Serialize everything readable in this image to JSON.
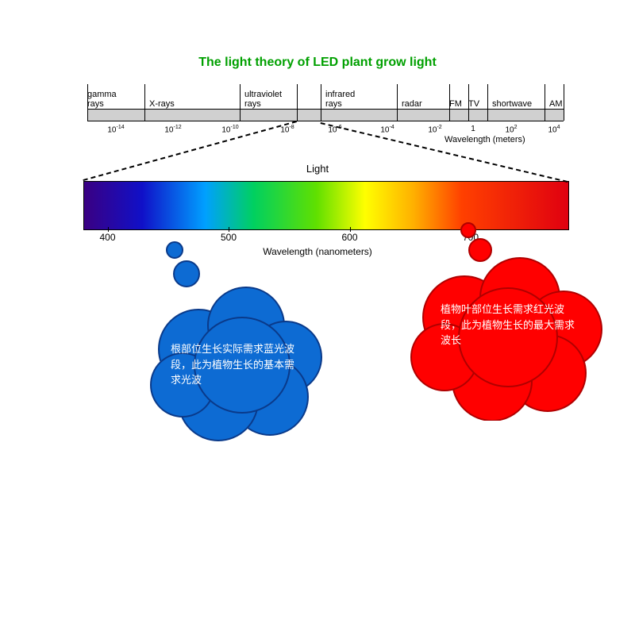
{
  "title": {
    "text": "The light theory of LED plant grow light",
    "color": "#00a000",
    "fontsize": 16
  },
  "em_spectrum": {
    "bar_color": "#d0d0d0",
    "bands": [
      {
        "label": "gamma\nrays",
        "left_pct": 0
      },
      {
        "label": "X-rays",
        "left_pct": 13
      },
      {
        "label": "ultraviolet\nrays",
        "left_pct": 33
      },
      {
        "label": "infrared\nrays",
        "left_pct": 50
      },
      {
        "label": "radar",
        "left_pct": 66
      },
      {
        "label": "FM",
        "left_pct": 76
      },
      {
        "label": "TV",
        "left_pct": 80
      },
      {
        "label": "shortwave",
        "left_pct": 85
      },
      {
        "label": "AM",
        "left_pct": 97
      }
    ],
    "ticks": [
      0,
      12,
      32,
      44,
      49,
      65,
      76,
      80,
      84,
      96,
      100
    ],
    "xaxis": {
      "label": "Wavelength (meters)",
      "values": [
        {
          "pos_pct": 6,
          "exp": "-14"
        },
        {
          "pos_pct": 18,
          "exp": "-12"
        },
        {
          "pos_pct": 30,
          "exp": "-10"
        },
        {
          "pos_pct": 42,
          "exp": "-8"
        },
        {
          "pos_pct": 52,
          "exp": "-6"
        },
        {
          "pos_pct": 63,
          "exp": "-4"
        },
        {
          "pos_pct": 73,
          "exp": "-2"
        },
        {
          "pos_pct": 81,
          "plain": "1"
        },
        {
          "pos_pct": 89,
          "exp": "2"
        },
        {
          "pos_pct": 98,
          "exp": "4"
        }
      ]
    },
    "visible_slot": {
      "left_pct": 44,
      "right_pct": 49
    }
  },
  "light_label": "Light",
  "visible_spectrum": {
    "gradient_stops": [
      {
        "pct": 0,
        "color": "#3a0082"
      },
      {
        "pct": 12,
        "color": "#1010c8"
      },
      {
        "pct": 25,
        "color": "#00a0ff"
      },
      {
        "pct": 35,
        "color": "#00d060"
      },
      {
        "pct": 48,
        "color": "#60e000"
      },
      {
        "pct": 58,
        "color": "#ffff00"
      },
      {
        "pct": 68,
        "color": "#ffb000"
      },
      {
        "pct": 78,
        "color": "#ff4000"
      },
      {
        "pct": 100,
        "color": "#e00010"
      }
    ],
    "xaxis": {
      "label": "Wavelength (nanometers)",
      "ticks": [
        {
          "pos_pct": 5,
          "label": "400"
        },
        {
          "pos_pct": 30,
          "label": "500"
        },
        {
          "pos_pct": 55,
          "label": "600"
        },
        {
          "pos_pct": 80,
          "label": "700"
        }
      ]
    }
  },
  "blue_cloud": {
    "fill": "#0d6bd3",
    "stroke": "#0a3a8a",
    "text": "根部位生长实际需求蓝光波段，此为植物生长的基本需求光波",
    "text_color": "#ffffff"
  },
  "red_cloud": {
    "fill": "#ff0000",
    "stroke": "#b00000",
    "text": "植物叶部位生长需求红光波段，此为植物生长的最大需求波长",
    "text_color": "#ffffff"
  }
}
